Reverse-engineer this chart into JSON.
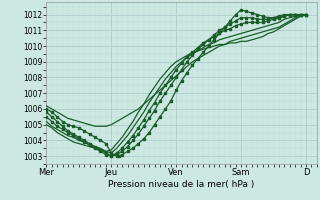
{
  "xlabel": "Pression niveau de la mer( hPa )",
  "bg_color": "#cce8e0",
  "grid_color_major": "#aacccc",
  "grid_color_minor": "#bbdddd",
  "line_color": "#1a5c2a",
  "ylim": [
    1002.5,
    1012.8
  ],
  "yticks": [
    1003,
    1004,
    1005,
    1006,
    1007,
    1008,
    1009,
    1010,
    1011,
    1012
  ],
  "day_labels": [
    "Mer",
    "Jeu",
    "Ven",
    "Sam",
    "D"
  ],
  "day_positions": [
    0,
    48,
    96,
    144,
    192
  ],
  "total_steps": 200,
  "series": [
    {
      "points": [
        [
          0,
          1006.0
        ],
        [
          4,
          1005.8
        ],
        [
          8,
          1005.5
        ],
        [
          12,
          1005.2
        ],
        [
          16,
          1005.0
        ],
        [
          20,
          1004.9
        ],
        [
          24,
          1004.8
        ],
        [
          28,
          1004.6
        ],
        [
          32,
          1004.4
        ],
        [
          36,
          1004.2
        ],
        [
          40,
          1004.0
        ],
        [
          44,
          1003.8
        ],
        [
          48,
          1003.2
        ],
        [
          52,
          1003.0
        ],
        [
          54,
          1003.0
        ],
        [
          56,
          1003.1
        ],
        [
          60,
          1003.3
        ],
        [
          64,
          1003.5
        ],
        [
          68,
          1003.8
        ],
        [
          72,
          1004.1
        ],
        [
          76,
          1004.5
        ],
        [
          80,
          1005.0
        ],
        [
          84,
          1005.5
        ],
        [
          88,
          1006.0
        ],
        [
          92,
          1006.5
        ],
        [
          96,
          1007.2
        ],
        [
          100,
          1007.8
        ],
        [
          104,
          1008.3
        ],
        [
          108,
          1008.8
        ],
        [
          112,
          1009.2
        ],
        [
          116,
          1009.6
        ],
        [
          120,
          1010.0
        ],
        [
          124,
          1010.4
        ],
        [
          128,
          1010.8
        ],
        [
          132,
          1011.2
        ],
        [
          136,
          1011.6
        ],
        [
          140,
          1012.0
        ],
        [
          144,
          1012.3
        ],
        [
          148,
          1012.2
        ],
        [
          152,
          1012.1
        ],
        [
          156,
          1012.0
        ],
        [
          160,
          1011.9
        ],
        [
          164,
          1011.8
        ],
        [
          168,
          1011.8
        ],
        [
          172,
          1011.8
        ],
        [
          176,
          1011.9
        ],
        [
          180,
          1012.0
        ],
        [
          184,
          1012.0
        ],
        [
          188,
          1012.0
        ],
        [
          192,
          1012.0
        ]
      ],
      "has_dots": true
    },
    {
      "points": [
        [
          0,
          1005.8
        ],
        [
          4,
          1005.5
        ],
        [
          8,
          1005.2
        ],
        [
          12,
          1004.9
        ],
        [
          16,
          1004.6
        ],
        [
          20,
          1004.4
        ],
        [
          24,
          1004.2
        ],
        [
          28,
          1004.0
        ],
        [
          32,
          1003.8
        ],
        [
          36,
          1003.6
        ],
        [
          40,
          1003.4
        ],
        [
          44,
          1003.2
        ],
        [
          48,
          1003.0
        ],
        [
          52,
          1003.1
        ],
        [
          56,
          1003.3
        ],
        [
          60,
          1003.6
        ],
        [
          64,
          1004.0
        ],
        [
          68,
          1004.4
        ],
        [
          72,
          1004.9
        ],
        [
          76,
          1005.4
        ],
        [
          80,
          1005.9
        ],
        [
          84,
          1006.5
        ],
        [
          88,
          1007.0
        ],
        [
          92,
          1007.5
        ],
        [
          96,
          1008.0
        ],
        [
          100,
          1008.5
        ],
        [
          104,
          1009.0
        ],
        [
          108,
          1009.4
        ],
        [
          112,
          1009.8
        ],
        [
          116,
          1010.1
        ],
        [
          120,
          1010.4
        ],
        [
          124,
          1010.7
        ],
        [
          128,
          1011.0
        ],
        [
          132,
          1011.2
        ],
        [
          136,
          1011.4
        ],
        [
          140,
          1011.6
        ],
        [
          144,
          1011.8
        ],
        [
          148,
          1011.8
        ],
        [
          152,
          1011.8
        ],
        [
          156,
          1011.7
        ],
        [
          160,
          1011.7
        ],
        [
          164,
          1011.7
        ],
        [
          168,
          1011.8
        ],
        [
          172,
          1011.9
        ],
        [
          176,
          1012.0
        ],
        [
          180,
          1012.0
        ],
        [
          184,
          1012.0
        ],
        [
          188,
          1012.0
        ],
        [
          192,
          1012.0
        ]
      ],
      "has_dots": true
    },
    {
      "points": [
        [
          0,
          1005.5
        ],
        [
          4,
          1005.2
        ],
        [
          8,
          1004.9
        ],
        [
          12,
          1004.7
        ],
        [
          16,
          1004.5
        ],
        [
          20,
          1004.3
        ],
        [
          24,
          1004.1
        ],
        [
          28,
          1003.9
        ],
        [
          32,
          1003.7
        ],
        [
          36,
          1003.5
        ],
        [
          40,
          1003.3
        ],
        [
          44,
          1003.1
        ],
        [
          48,
          1003.0
        ],
        [
          52,
          1003.2
        ],
        [
          56,
          1003.5
        ],
        [
          60,
          1003.9
        ],
        [
          64,
          1004.3
        ],
        [
          68,
          1004.8
        ],
        [
          72,
          1005.3
        ],
        [
          76,
          1005.9
        ],
        [
          80,
          1006.4
        ],
        [
          84,
          1007.0
        ],
        [
          88,
          1007.5
        ],
        [
          92,
          1008.0
        ],
        [
          96,
          1008.5
        ],
        [
          100,
          1008.9
        ],
        [
          104,
          1009.3
        ],
        [
          108,
          1009.6
        ],
        [
          112,
          1009.9
        ],
        [
          116,
          1010.2
        ],
        [
          120,
          1010.4
        ],
        [
          124,
          1010.6
        ],
        [
          128,
          1010.8
        ],
        [
          132,
          1011.0
        ],
        [
          136,
          1011.1
        ],
        [
          140,
          1011.3
        ],
        [
          144,
          1011.4
        ],
        [
          148,
          1011.5
        ],
        [
          152,
          1011.5
        ],
        [
          156,
          1011.5
        ],
        [
          160,
          1011.5
        ],
        [
          164,
          1011.6
        ],
        [
          168,
          1011.7
        ],
        [
          172,
          1011.8
        ],
        [
          176,
          1011.9
        ],
        [
          180,
          1012.0
        ],
        [
          184,
          1012.0
        ],
        [
          188,
          1012.0
        ],
        [
          192,
          1012.0
        ]
      ],
      "has_dots": true
    },
    {
      "points": [
        [
          0,
          1005.2
        ],
        [
          4,
          1004.9
        ],
        [
          8,
          1004.7
        ],
        [
          12,
          1004.5
        ],
        [
          16,
          1004.3
        ],
        [
          20,
          1004.2
        ],
        [
          24,
          1004.0
        ],
        [
          28,
          1003.9
        ],
        [
          32,
          1003.7
        ],
        [
          36,
          1003.6
        ],
        [
          40,
          1003.5
        ],
        [
          44,
          1003.3
        ],
        [
          48,
          1003.2
        ],
        [
          52,
          1003.5
        ],
        [
          56,
          1003.9
        ],
        [
          60,
          1004.3
        ],
        [
          64,
          1004.8
        ],
        [
          68,
          1005.3
        ],
        [
          72,
          1005.8
        ],
        [
          76,
          1006.4
        ],
        [
          80,
          1006.9
        ],
        [
          84,
          1007.4
        ],
        [
          88,
          1007.9
        ],
        [
          92,
          1008.3
        ],
        [
          96,
          1008.7
        ],
        [
          100,
          1009.0
        ],
        [
          104,
          1009.3
        ],
        [
          108,
          1009.5
        ],
        [
          112,
          1009.7
        ],
        [
          116,
          1009.9
        ],
        [
          120,
          1010.1
        ],
        [
          124,
          1010.2
        ],
        [
          128,
          1010.4
        ],
        [
          132,
          1010.5
        ],
        [
          136,
          1010.6
        ],
        [
          140,
          1010.7
        ],
        [
          144,
          1010.8
        ],
        [
          148,
          1010.9
        ],
        [
          152,
          1011.0
        ],
        [
          156,
          1011.1
        ],
        [
          160,
          1011.2
        ],
        [
          164,
          1011.3
        ],
        [
          168,
          1011.4
        ],
        [
          172,
          1011.5
        ],
        [
          176,
          1011.7
        ],
        [
          180,
          1011.8
        ],
        [
          184,
          1011.9
        ],
        [
          188,
          1012.0
        ],
        [
          192,
          1012.0
        ]
      ],
      "has_dots": false
    },
    {
      "points": [
        [
          0,
          1006.2
        ],
        [
          4,
          1006.0
        ],
        [
          8,
          1005.8
        ],
        [
          12,
          1005.6
        ],
        [
          16,
          1005.4
        ],
        [
          20,
          1005.3
        ],
        [
          24,
          1005.2
        ],
        [
          28,
          1005.1
        ],
        [
          32,
          1005.0
        ],
        [
          36,
          1004.9
        ],
        [
          40,
          1004.9
        ],
        [
          44,
          1004.9
        ],
        [
          48,
          1005.0
        ],
        [
          52,
          1005.2
        ],
        [
          56,
          1005.4
        ],
        [
          60,
          1005.6
        ],
        [
          64,
          1005.8
        ],
        [
          68,
          1006.0
        ],
        [
          72,
          1006.3
        ],
        [
          76,
          1006.6
        ],
        [
          80,
          1006.9
        ],
        [
          84,
          1007.2
        ],
        [
          88,
          1007.5
        ],
        [
          92,
          1007.8
        ],
        [
          96,
          1008.1
        ],
        [
          100,
          1008.4
        ],
        [
          104,
          1008.7
        ],
        [
          108,
          1009.0
        ],
        [
          112,
          1009.2
        ],
        [
          116,
          1009.4
        ],
        [
          120,
          1009.6
        ],
        [
          124,
          1009.8
        ],
        [
          128,
          1010.0
        ],
        [
          132,
          1010.1
        ],
        [
          136,
          1010.3
        ],
        [
          140,
          1010.4
        ],
        [
          144,
          1010.5
        ],
        [
          148,
          1010.6
        ],
        [
          152,
          1010.7
        ],
        [
          156,
          1010.8
        ],
        [
          160,
          1010.9
        ],
        [
          164,
          1011.0
        ],
        [
          168,
          1011.1
        ],
        [
          172,
          1011.2
        ],
        [
          176,
          1011.4
        ],
        [
          180,
          1011.6
        ],
        [
          184,
          1011.8
        ],
        [
          188,
          1011.9
        ],
        [
          192,
          1012.0
        ]
      ],
      "has_dots": false
    },
    {
      "points": [
        [
          0,
          1005.0
        ],
        [
          4,
          1004.8
        ],
        [
          8,
          1004.5
        ],
        [
          12,
          1004.3
        ],
        [
          16,
          1004.1
        ],
        [
          20,
          1003.9
        ],
        [
          24,
          1003.8
        ],
        [
          28,
          1003.7
        ],
        [
          32,
          1003.6
        ],
        [
          36,
          1003.5
        ],
        [
          40,
          1003.4
        ],
        [
          44,
          1003.3
        ],
        [
          48,
          1003.4
        ],
        [
          52,
          1003.8
        ],
        [
          56,
          1004.2
        ],
        [
          60,
          1004.7
        ],
        [
          64,
          1005.2
        ],
        [
          68,
          1005.8
        ],
        [
          72,
          1006.3
        ],
        [
          76,
          1006.9
        ],
        [
          80,
          1007.4
        ],
        [
          84,
          1007.9
        ],
        [
          88,
          1008.3
        ],
        [
          92,
          1008.7
        ],
        [
          96,
          1009.0
        ],
        [
          100,
          1009.2
        ],
        [
          104,
          1009.4
        ],
        [
          108,
          1009.6
        ],
        [
          112,
          1009.7
        ],
        [
          116,
          1009.8
        ],
        [
          120,
          1009.9
        ],
        [
          124,
          1010.0
        ],
        [
          128,
          1010.1
        ],
        [
          132,
          1010.1
        ],
        [
          136,
          1010.2
        ],
        [
          140,
          1010.2
        ],
        [
          144,
          1010.3
        ],
        [
          148,
          1010.3
        ],
        [
          152,
          1010.4
        ],
        [
          156,
          1010.5
        ],
        [
          160,
          1010.6
        ],
        [
          164,
          1010.8
        ],
        [
          168,
          1010.9
        ],
        [
          172,
          1011.1
        ],
        [
          176,
          1011.3
        ],
        [
          180,
          1011.5
        ],
        [
          184,
          1011.7
        ],
        [
          188,
          1011.9
        ],
        [
          192,
          1012.0
        ]
      ],
      "has_dots": false
    }
  ]
}
